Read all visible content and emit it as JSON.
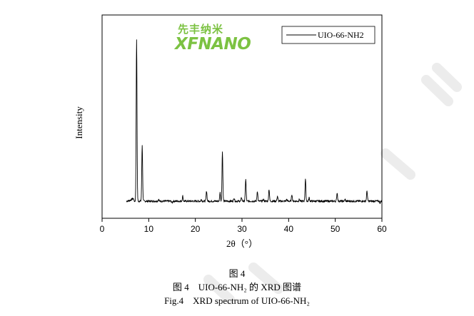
{
  "logo": {
    "name_cn": "先丰纳米",
    "name_en": "XFNANO"
  },
  "chart_data": {
    "type": "line",
    "title": "",
    "xlabel": "2θ（°）",
    "ylabel": "Intensity",
    "xlim": [
      0,
      60
    ],
    "xticks": [
      0,
      10,
      20,
      30,
      40,
      50,
      60
    ],
    "y_tick_labels": false,
    "grid": false,
    "legend_position": "top-right",
    "series": [
      {
        "name": "UIO-66-NH2",
        "color": "#000000",
        "baseline": 5,
        "start_x": 5.2,
        "end_x": 60,
        "peaks": [
          {
            "x": 7.4,
            "y": 100
          },
          {
            "x": 8.6,
            "y": 38
          },
          {
            "x": 12.1,
            "y": 6
          },
          {
            "x": 14.3,
            "y": 5
          },
          {
            "x": 15.0,
            "y": 4
          },
          {
            "x": 17.3,
            "y": 8
          },
          {
            "x": 18.8,
            "y": 5
          },
          {
            "x": 19.3,
            "y": 5
          },
          {
            "x": 21.3,
            "y": 6
          },
          {
            "x": 22.4,
            "y": 11
          },
          {
            "x": 24.0,
            "y": 5
          },
          {
            "x": 25.3,
            "y": 10
          },
          {
            "x": 25.8,
            "y": 34
          },
          {
            "x": 28.3,
            "y": 7
          },
          {
            "x": 29.9,
            "y": 7
          },
          {
            "x": 30.8,
            "y": 18
          },
          {
            "x": 32.3,
            "y": 5
          },
          {
            "x": 33.3,
            "y": 11
          },
          {
            "x": 34.6,
            "y": 6
          },
          {
            "x": 35.8,
            "y": 12
          },
          {
            "x": 37.6,
            "y": 8
          },
          {
            "x": 39.6,
            "y": 6
          },
          {
            "x": 40.7,
            "y": 9
          },
          {
            "x": 42.3,
            "y": 6
          },
          {
            "x": 43.6,
            "y": 18
          },
          {
            "x": 44.4,
            "y": 7
          },
          {
            "x": 45.2,
            "y": 5
          },
          {
            "x": 48.8,
            "y": 5
          },
          {
            "x": 50.4,
            "y": 10
          },
          {
            "x": 52.1,
            "y": 6
          },
          {
            "x": 54.9,
            "y": 5
          },
          {
            "x": 56.8,
            "y": 11
          },
          {
            "x": 58.0,
            "y": 5
          },
          {
            "x": 58.9,
            "y": 5
          },
          {
            "x": 59.6,
            "y": 4
          }
        ]
      }
    ]
  },
  "captions": {
    "figure_number": "图 4",
    "title_cn": "图 4　UIO-66-NH₂ 的 XRD 图谱",
    "title_en": "Fig.4　XRD spectrum of UIO-66-NH₂"
  }
}
